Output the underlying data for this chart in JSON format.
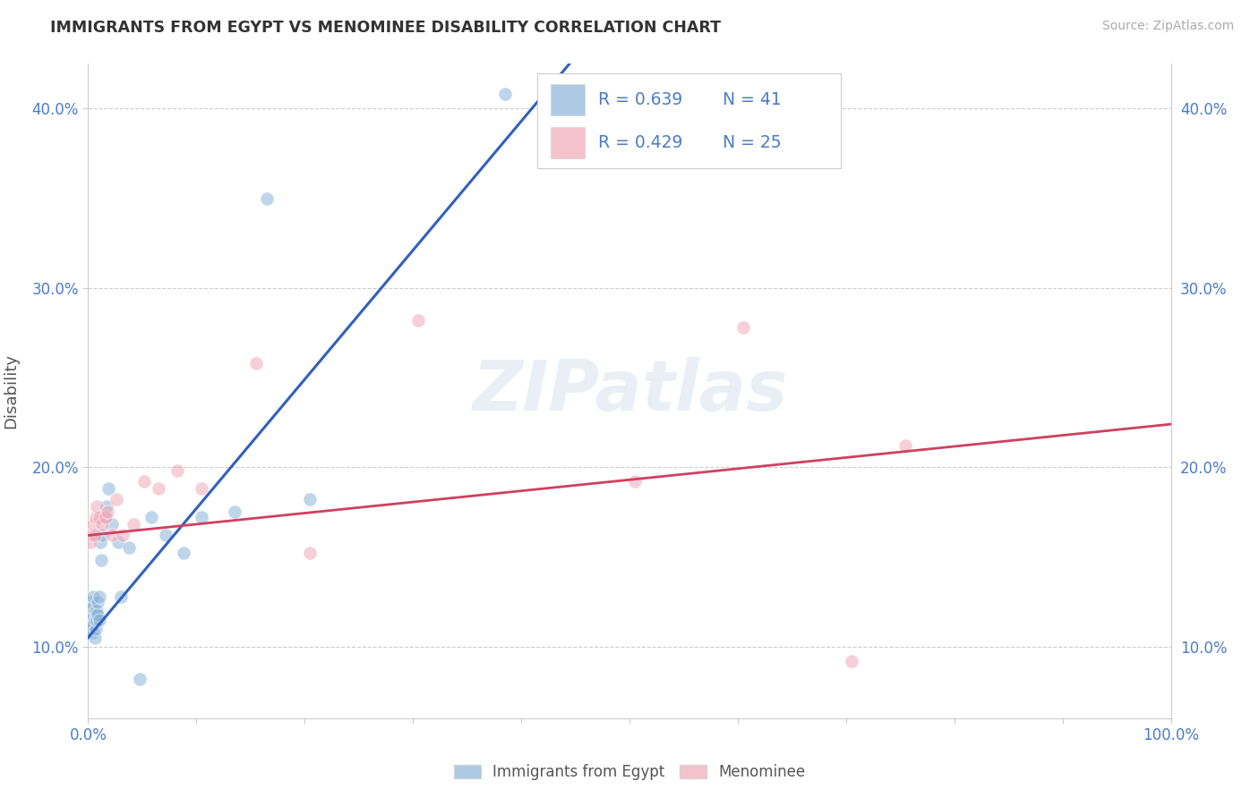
{
  "title": "IMMIGRANTS FROM EGYPT VS MENOMINEE DISABILITY CORRELATION CHART",
  "source_text": "Source: ZipAtlas.com",
  "ylabel": "Disability",
  "xlim": [
    0.0,
    1.0
  ],
  "ylim": [
    0.06,
    0.425
  ],
  "x_ticks": [
    0.0,
    0.1,
    0.2,
    0.3,
    0.4,
    0.5,
    0.6,
    0.7,
    0.8,
    0.9,
    1.0
  ],
  "x_tick_labels": [
    "0.0%",
    "",
    "",
    "",
    "",
    "",
    "",
    "",
    "",
    "",
    "100.0%"
  ],
  "y_ticks": [
    0.1,
    0.2,
    0.3,
    0.4
  ],
  "y_tick_labels": [
    "10.0%",
    "20.0%",
    "30.0%",
    "40.0%"
  ],
  "legend_r_blue": "R = 0.639",
  "legend_n_blue": "N = 41",
  "legend_r_pink": "R = 0.429",
  "legend_n_pink": "N = 25",
  "blue_color": "#8ab4d9",
  "pink_color": "#f0a8b8",
  "blue_line_color": "#3060c0",
  "pink_line_color": "#d04060",
  "text_color": "#4a7cc7",
  "blue_scatter_x": [
    0.001,
    0.002,
    0.002,
    0.003,
    0.003,
    0.003,
    0.004,
    0.004,
    0.004,
    0.005,
    0.005,
    0.006,
    0.006,
    0.006,
    0.007,
    0.007,
    0.008,
    0.008,
    0.009,
    0.009,
    0.01,
    0.01,
    0.011,
    0.012,
    0.013,
    0.015,
    0.017,
    0.019,
    0.022,
    0.028,
    0.03,
    0.038,
    0.048,
    0.058,
    0.072,
    0.088,
    0.105,
    0.135,
    0.165,
    0.205,
    0.385
  ],
  "blue_scatter_y": [
    0.115,
    0.11,
    0.12,
    0.113,
    0.118,
    0.125,
    0.112,
    0.118,
    0.122,
    0.108,
    0.128,
    0.105,
    0.12,
    0.115,
    0.11,
    0.118,
    0.115,
    0.12,
    0.118,
    0.125,
    0.115,
    0.128,
    0.158,
    0.148,
    0.162,
    0.172,
    0.178,
    0.188,
    0.168,
    0.158,
    0.128,
    0.155,
    0.082,
    0.172,
    0.162,
    0.152,
    0.172,
    0.175,
    0.35,
    0.182,
    0.408
  ],
  "pink_scatter_x": [
    0.002,
    0.003,
    0.005,
    0.006,
    0.007,
    0.008,
    0.01,
    0.013,
    0.016,
    0.018,
    0.022,
    0.026,
    0.032,
    0.042,
    0.052,
    0.065,
    0.082,
    0.105,
    0.155,
    0.205,
    0.305,
    0.505,
    0.605,
    0.705,
    0.755
  ],
  "pink_scatter_y": [
    0.158,
    0.162,
    0.168,
    0.162,
    0.172,
    0.178,
    0.172,
    0.168,
    0.172,
    0.175,
    0.162,
    0.182,
    0.162,
    0.168,
    0.192,
    0.188,
    0.198,
    0.188,
    0.258,
    0.152,
    0.282,
    0.192,
    0.278,
    0.092,
    0.212
  ],
  "blue_reg_slope": 0.72,
  "blue_reg_intercept": 0.105,
  "pink_reg_slope": 0.062,
  "pink_reg_intercept": 0.162
}
